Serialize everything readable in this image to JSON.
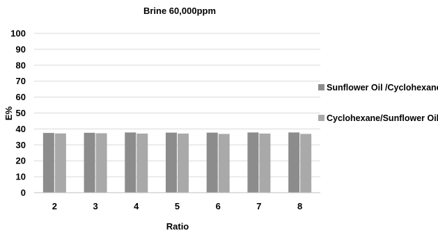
{
  "chart_data": {
    "type": "bar",
    "title": "Brine 60,000ppm",
    "xlabel": "Ratio",
    "ylabel": "E%",
    "categories": [
      "2",
      "3",
      "4",
      "5",
      "6",
      "7",
      "8"
    ],
    "ylim": [
      0,
      100
    ],
    "yticks": [
      "0",
      "10",
      "20",
      "30",
      "40",
      "50",
      "60",
      "70",
      "80",
      "90",
      "100"
    ],
    "grid": true,
    "legend_position": "right",
    "series": [
      {
        "name": "Sunflower Oil /Cyclohexane",
        "color": "#8c8c8c",
        "values": [
          37.5,
          37.6,
          37.8,
          37.7,
          37.7,
          37.8,
          37.8
        ]
      },
      {
        "name": "Cyclohexane/Sunflower Oil",
        "color": "#a9a9a9",
        "values": [
          37.2,
          37.3,
          37.1,
          37.1,
          36.9,
          37.1,
          36.9
        ]
      }
    ]
  }
}
